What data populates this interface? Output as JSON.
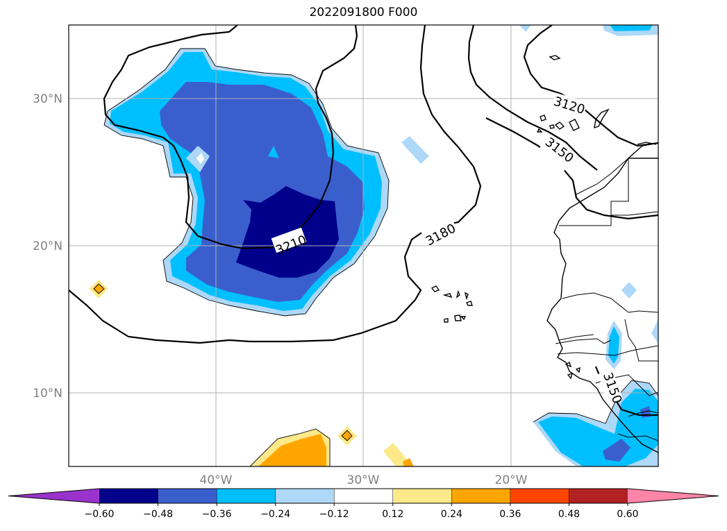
{
  "title": "2022091800 F000",
  "map": {
    "lat_labels": [
      "30°N",
      "20°N",
      "10°N"
    ],
    "lon_labels": [
      "40°W",
      "30°W",
      "20°W"
    ],
    "contour_labels": [
      "3210",
      "3180",
      "3150",
      "3120",
      "3150"
    ]
  },
  "colorbar": {
    "ticks": [
      "−0.60",
      "−0.48",
      "−0.36",
      "−0.24",
      "−0.12",
      "0.12",
      "0.24",
      "0.36",
      "0.48",
      "0.60"
    ],
    "colors": [
      "#9933cc",
      "#00008b",
      "#3a5fcd",
      "#00bfff",
      "#add8f7",
      "#ffffff",
      "#fde98a",
      "#ffa500",
      "#ff4500",
      "#b22222",
      "#ff85a8"
    ]
  },
  "colors": {
    "deep_blue": "#00008b",
    "mid_blue": "#3a5fcd",
    "sky_blue": "#00bfff",
    "light_blue": "#add8f7",
    "light_yellow": "#fde98a",
    "orange": "#ffa500"
  }
}
